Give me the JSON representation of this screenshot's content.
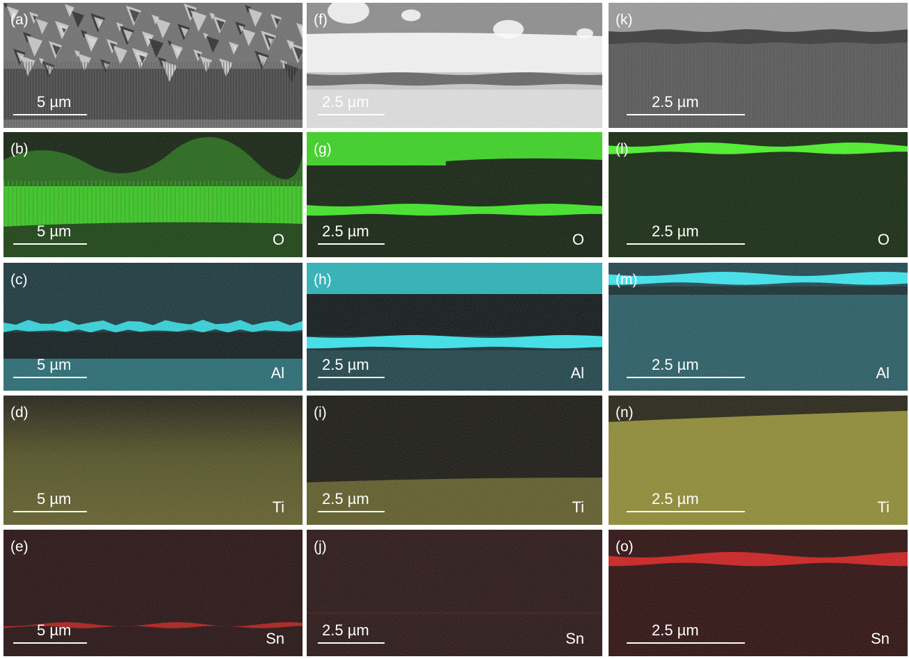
{
  "figure": {
    "panels": [
      {
        "id": "a",
        "label": "(a)",
        "scale": "5 µm",
        "element": "",
        "type": "sem-columnar"
      },
      {
        "id": "b",
        "label": "(b)",
        "scale": "5 µm",
        "element": "O",
        "type": "map-O-a",
        "color": "#39e81e"
      },
      {
        "id": "c",
        "label": "(c)",
        "scale": "5 µm",
        "element": "Al",
        "type": "map-Al-a",
        "color": "#27d4dc"
      },
      {
        "id": "d",
        "label": "(d)",
        "scale": "5 µm",
        "element": "Ti",
        "type": "map-Ti-a",
        "color": "#b7b321"
      },
      {
        "id": "e",
        "label": "(e)",
        "scale": "5 µm",
        "element": "Sn",
        "type": "map-Sn-a",
        "color": "#c41616"
      },
      {
        "id": "f",
        "label": "(f)",
        "scale": "2.5 µm",
        "element": "",
        "type": "sem-layered"
      },
      {
        "id": "g",
        "label": "(g)",
        "scale": "2.5 µm",
        "element": "O",
        "type": "map-O-b",
        "color": "#39e81e"
      },
      {
        "id": "h",
        "label": "(h)",
        "scale": "2.5 µm",
        "element": "Al",
        "type": "map-Al-b",
        "color": "#27d4dc"
      },
      {
        "id": "i",
        "label": "(i)",
        "scale": "2.5 µm",
        "element": "Ti",
        "type": "map-Ti-b",
        "color": "#b7b321"
      },
      {
        "id": "j",
        "label": "(j)",
        "scale": "2.5 µm",
        "element": "Sn",
        "type": "map-Sn-b",
        "color": "#c41616"
      },
      {
        "id": "k",
        "label": "(k)",
        "scale": "2.5 µm",
        "element": "",
        "type": "sem-thin"
      },
      {
        "id": "l",
        "label": "(l)",
        "scale": "2.5 µm",
        "element": "O",
        "type": "map-O-c",
        "color": "#39e81e"
      },
      {
        "id": "m",
        "label": "(m)",
        "scale": "2.5 µm",
        "element": "Al",
        "type": "map-Al-c",
        "color": "#27d4dc"
      },
      {
        "id": "n",
        "label": "(n)",
        "scale": "2.5 µm",
        "element": "Ti",
        "type": "map-Ti-c",
        "color": "#b7b321"
      },
      {
        "id": "o",
        "label": "(o)",
        "scale": "2.5 µm",
        "element": "Sn",
        "type": "map-Sn-c",
        "color": "#e01a1a"
      }
    ]
  }
}
